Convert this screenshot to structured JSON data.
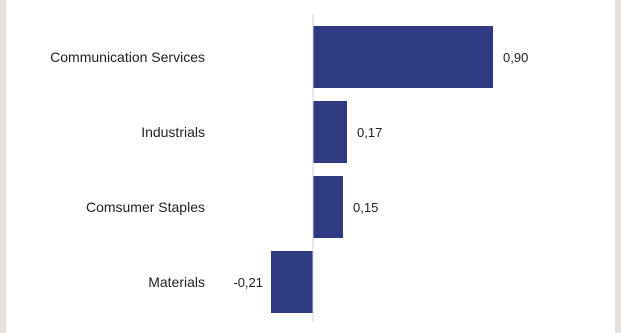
{
  "chart_data": {
    "type": "bar",
    "orientation": "horizontal",
    "categories": [
      "Communication Services",
      "Industrials",
      "Comsumer Staples",
      "Materials"
    ],
    "values": [
      0.9,
      0.17,
      0.15,
      -0.21
    ],
    "value_labels": [
      "0,90",
      "0,17",
      "0,15",
      "-0,21"
    ],
    "xlim": [
      -0.21,
      0.9
    ],
    "grid": false,
    "legend": "none",
    "bar_color": "#2e3b80",
    "axis_color": "#d0d0d0"
  }
}
